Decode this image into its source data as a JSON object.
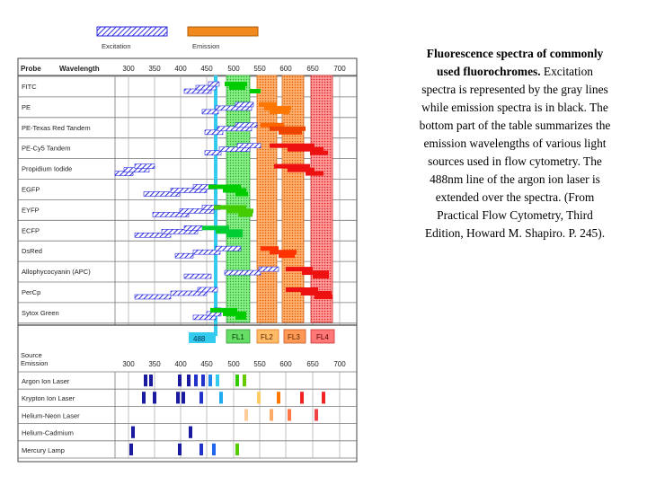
{
  "legend": {
    "excitation": "Excitation",
    "emission": "Emission"
  },
  "probe_header": {
    "probe": "Probe",
    "wavelength": "Wavelength"
  },
  "source_header": {
    "line1": "Source",
    "line2": "Emission"
  },
  "wavelength_ticks": [
    "300",
    "350",
    "400",
    "450",
    "500",
    "550",
    "600",
    "650",
    "700"
  ],
  "probes": [
    "FITC",
    "PE",
    "PE-Texas Red Tandem",
    "PE-Cy5 Tandem",
    "Propidium Iodide",
    "EGFP",
    "EYFP",
    "ECFP",
    "DsRed",
    "Allophycocyanin (APC)",
    "PerCp",
    "Sytox Green"
  ],
  "filter_labels": {
    "laser": "488",
    "fl1": "FL1",
    "fl2": "FL2",
    "fl3": "FL3",
    "fl4": "FL4"
  },
  "sources": [
    "Argon Ion Laser",
    "Krypton Ion Laser",
    "Helium-Neon Laser",
    "Helium-Cadmium",
    "Mercury Lamp"
  ],
  "colors": {
    "excitation_blue": "#2a2ae0",
    "emission_green": "#00cc00",
    "emission_orange": "#ff7700",
    "emission_red": "#ee1111",
    "fl1": "#66dd66",
    "fl2": "#ffbb66",
    "fl3": "#ff9955",
    "fl4": "#ff7777",
    "laser_cyan": "#33ccee"
  },
  "caption": {
    "bold": "Fluorescence spectra of commonly used fluorochromes.",
    "text": " Excitation spectra is represented by the gray lines while emission spectra is in black. The bottom part of the table summarizes the emission wavelengths of various light sources used in flow cytometry. The 488nm line of the argon ion laser is extended over the spectra. (From Practical Flow Cytometry, Third Edition, Howard M. Shapiro. P. 245)."
  }
}
